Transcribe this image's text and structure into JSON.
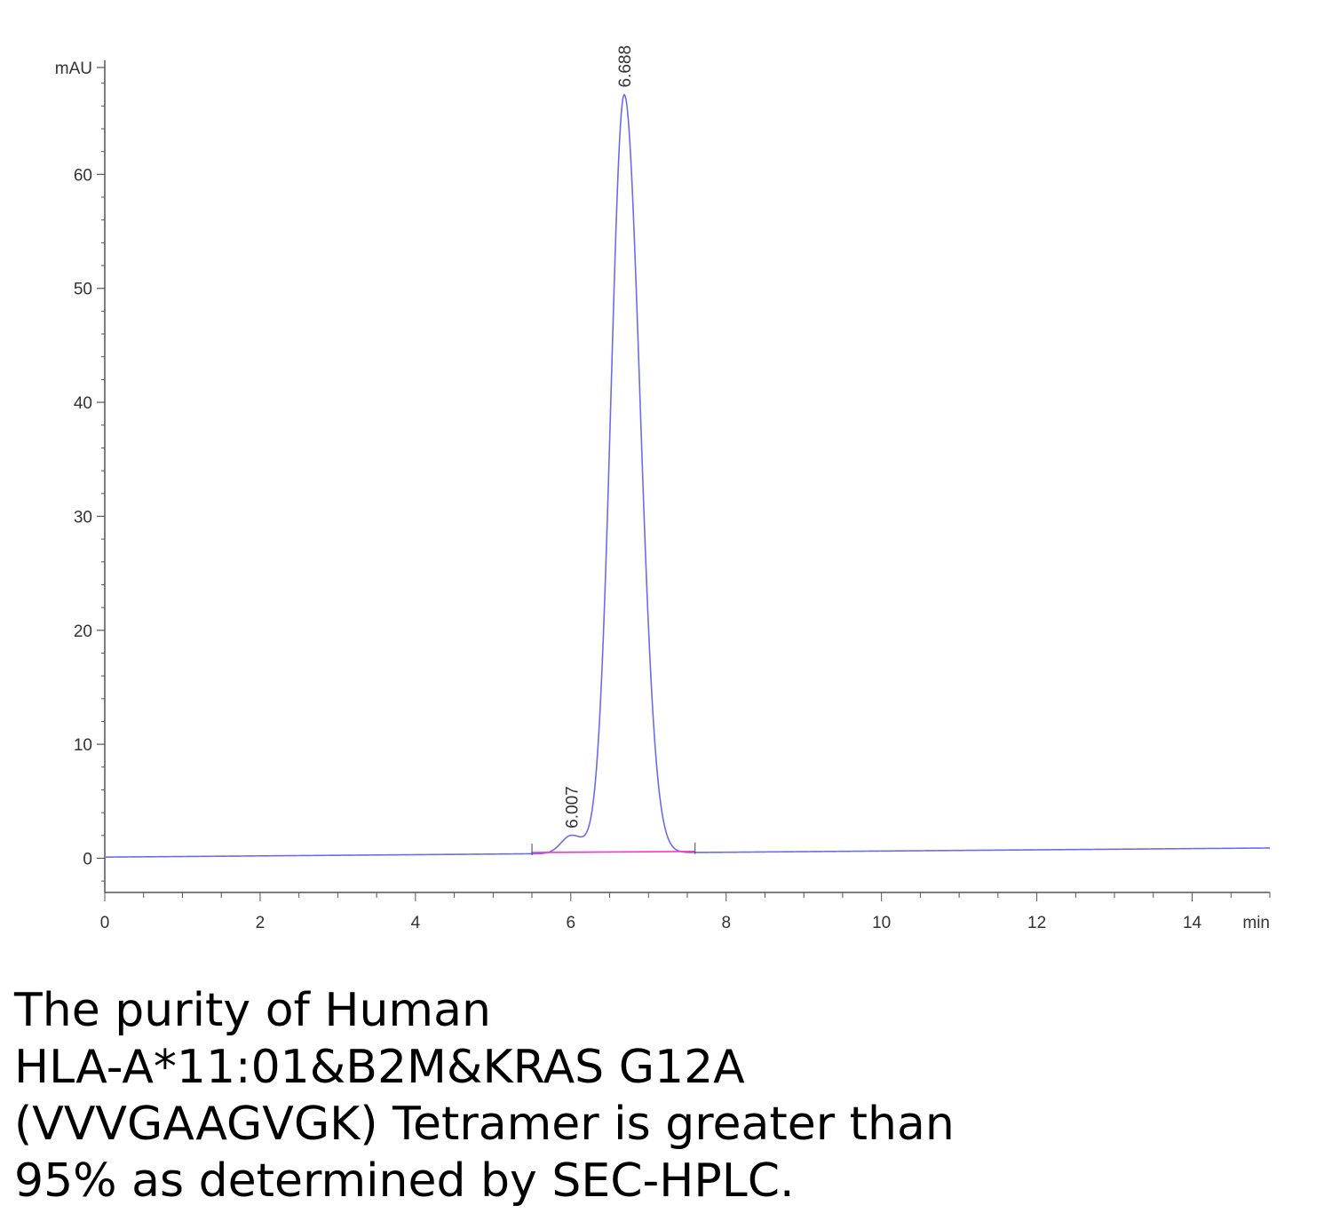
{
  "chart_data": {
    "type": "line",
    "ylabel": "mAU",
    "xlabel": "min",
    "xlim": [
      0,
      15
    ],
    "ylim": [
      -3,
      70
    ],
    "x_ticks": [
      0,
      2,
      4,
      6,
      8,
      10,
      12,
      14
    ],
    "y_ticks": [
      0,
      10,
      20,
      30,
      40,
      50,
      60
    ],
    "grid": false,
    "colors": {
      "trace": "#6b6bf0",
      "baseline": "#ff33cc",
      "axis": "#555555"
    },
    "peaks": [
      {
        "label": "6.007",
        "x": 6.007,
        "y": 2.0,
        "width": 0.13
      },
      {
        "label": "6.688",
        "x": 6.688,
        "y": 67.0,
        "width": 0.17
      }
    ],
    "baseline_segment": {
      "x": [
        5.5,
        7.6
      ],
      "y": [
        0.5,
        0.6
      ]
    },
    "trace_baseline": {
      "x": [
        0,
        15
      ],
      "y": [
        0.1,
        0.9
      ]
    }
  },
  "caption": {
    "lines": [
      "The purity of Human",
      "HLA-A*11:01&B2M&KRAS G12A",
      "(VVVGAAGVGK) Tetramer is greater than",
      "95% as determined by SEC-HPLC."
    ]
  }
}
